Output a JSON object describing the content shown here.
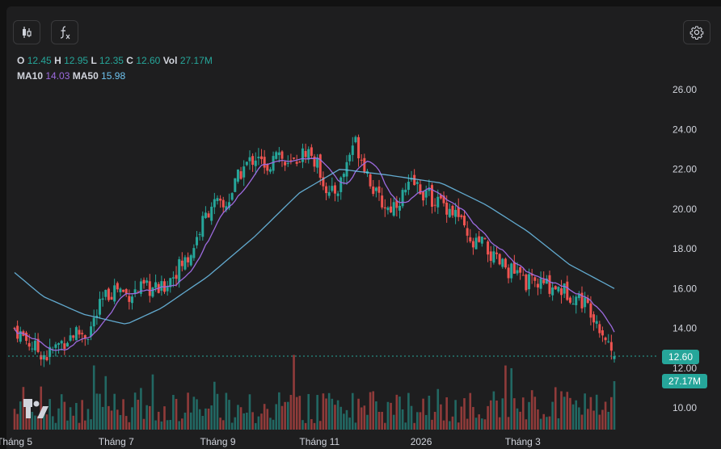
{
  "toolbar": {
    "candles_icon": "candlestick-icon",
    "indicator_icon": "function-icon",
    "settings_icon": "gear-icon"
  },
  "legend": {
    "o_label": "O",
    "o_value": "12.45",
    "h_label": "H",
    "h_value": "12.95",
    "l_label": "L",
    "l_value": "12.35",
    "c_label": "C",
    "c_value": "12.60",
    "vol_label": "Vol",
    "vol_value": "27.17M",
    "ma10_label": "MA10",
    "ma10_value": "14.03",
    "ma50_label": "MA50",
    "ma50_value": "15.98"
  },
  "colors": {
    "up": "#26a69a",
    "down": "#ef5350",
    "ma10": "#9c6ade",
    "ma50": "#6ec3ef",
    "price_tag": "#26a69a"
  },
  "chart_data": {
    "type": "candlestick",
    "title": "",
    "y_ticks": [
      "26.00",
      "24.00",
      "22.00",
      "20.00",
      "18.00",
      "16.00",
      "14.00",
      "12.00",
      "10.00"
    ],
    "ylim": [
      9.3,
      26.8
    ],
    "x_ticks": [
      "Tháng 5",
      "Tháng 7",
      "Tháng 9",
      "Tháng 11",
      "2026",
      "Tháng 3"
    ],
    "x_tick_positions": [
      0.0,
      0.5,
      1.0,
      1.5,
      2.0,
      2.5
    ],
    "last_price_label": "12.60",
    "last_volume_label": "27.17M",
    "last_price": 12.6,
    "ma50_keypoints": [
      {
        "x": 0.0,
        "y": 16.8
      },
      {
        "x": 0.14,
        "y": 15.6
      },
      {
        "x": 0.34,
        "y": 14.7
      },
      {
        "x": 0.55,
        "y": 14.2
      },
      {
        "x": 0.72,
        "y": 15.0
      },
      {
        "x": 0.95,
        "y": 16.6
      },
      {
        "x": 1.18,
        "y": 18.6
      },
      {
        "x": 1.4,
        "y": 20.8
      },
      {
        "x": 1.6,
        "y": 22.0
      },
      {
        "x": 1.84,
        "y": 21.7
      },
      {
        "x": 2.1,
        "y": 21.3
      },
      {
        "x": 2.32,
        "y": 20.2
      },
      {
        "x": 2.52,
        "y": 18.9
      },
      {
        "x": 2.73,
        "y": 17.2
      },
      {
        "x": 2.95,
        "y": 16.0
      }
    ],
    "close_keypoints": [
      {
        "x": 0.0,
        "y": 14.0
      },
      {
        "x": 0.1,
        "y": 13.0
      },
      {
        "x": 0.16,
        "y": 12.6
      },
      {
        "x": 0.22,
        "y": 13.2
      },
      {
        "x": 0.3,
        "y": 13.8
      },
      {
        "x": 0.36,
        "y": 13.7
      },
      {
        "x": 0.44,
        "y": 15.5
      },
      {
        "x": 0.5,
        "y": 16.1
      },
      {
        "x": 0.55,
        "y": 15.7
      },
      {
        "x": 0.64,
        "y": 16.0
      },
      {
        "x": 0.72,
        "y": 15.9
      },
      {
        "x": 0.8,
        "y": 17.0
      },
      {
        "x": 0.86,
        "y": 17.6
      },
      {
        "x": 0.92,
        "y": 19.2
      },
      {
        "x": 0.97,
        "y": 20.3
      },
      {
        "x": 1.03,
        "y": 20.0
      },
      {
        "x": 1.12,
        "y": 22.0
      },
      {
        "x": 1.2,
        "y": 22.8
      },
      {
        "x": 1.24,
        "y": 21.5
      },
      {
        "x": 1.28,
        "y": 23.3
      },
      {
        "x": 1.34,
        "y": 22.0
      },
      {
        "x": 1.44,
        "y": 23.0
      },
      {
        "x": 1.5,
        "y": 22.0
      },
      {
        "x": 1.55,
        "y": 20.6
      },
      {
        "x": 1.6,
        "y": 21.2
      },
      {
        "x": 1.67,
        "y": 23.5
      },
      {
        "x": 1.72,
        "y": 22.3
      },
      {
        "x": 1.78,
        "y": 20.6
      },
      {
        "x": 1.84,
        "y": 20.0
      },
      {
        "x": 1.9,
        "y": 20.6
      },
      {
        "x": 1.96,
        "y": 21.3
      },
      {
        "x": 2.04,
        "y": 20.6
      },
      {
        "x": 2.12,
        "y": 20.2
      },
      {
        "x": 2.18,
        "y": 19.7
      },
      {
        "x": 2.24,
        "y": 18.1
      },
      {
        "x": 2.3,
        "y": 18.3
      },
      {
        "x": 2.36,
        "y": 17.4
      },
      {
        "x": 2.44,
        "y": 16.9
      },
      {
        "x": 2.52,
        "y": 16.3
      },
      {
        "x": 2.6,
        "y": 16.2
      },
      {
        "x": 2.66,
        "y": 16.1
      },
      {
        "x": 2.72,
        "y": 15.8
      },
      {
        "x": 2.78,
        "y": 15.5
      },
      {
        "x": 2.84,
        "y": 14.9
      },
      {
        "x": 2.9,
        "y": 13.7
      },
      {
        "x": 2.95,
        "y": 12.6
      }
    ]
  }
}
